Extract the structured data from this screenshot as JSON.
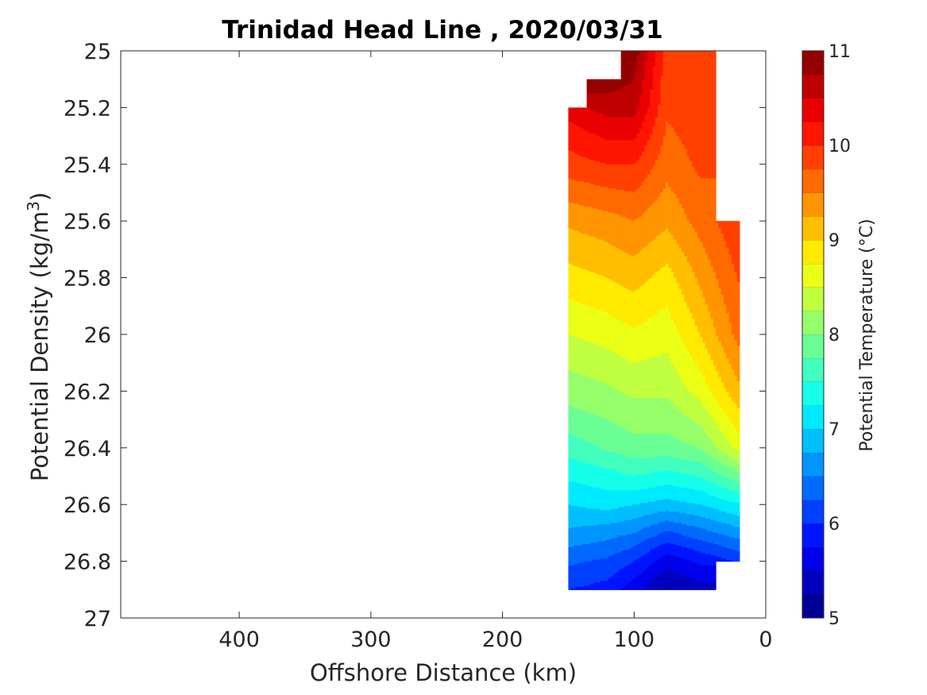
{
  "chart_data": {
    "type": "heatmap",
    "title": "Trinidad Head Line , 2020/03/31",
    "xlabel": "Offshore Distance (km)",
    "ylabel": "Potential Density (kg/m",
    "ylabel_sup": "3",
    "ylabel_close": ")",
    "colorbar_label": "Potential Temperature (°C)",
    "xlim": [
      490,
      0
    ],
    "ylim": [
      25,
      27
    ],
    "x_reversed": true,
    "y_reversed": true,
    "xticks": [
      400,
      300,
      200,
      100,
      0
    ],
    "yticks": [
      "25",
      "25.2",
      "25.4",
      "25.6",
      "25.8",
      "26",
      "26.2",
      "26.4",
      "26.6",
      "26.8",
      "27"
    ],
    "colorbar_ticks": [
      "11",
      "10",
      "9",
      "8",
      "7",
      "6",
      "5"
    ],
    "colorbar_range": [
      5,
      11
    ],
    "colorbar_levels": 24,
    "grid": false,
    "data_extent_km": [
      20,
      150
    ],
    "density_extent": [
      25,
      26.9
    ],
    "columns": [
      {
        "x": 150,
        "sigma": [
          25.2,
          25.3,
          25.4,
          25.5,
          25.6,
          25.7,
          25.8,
          25.9,
          26.0,
          26.1,
          26.2,
          26.3,
          26.4,
          26.5,
          26.6,
          26.7,
          26.8,
          26.9
        ],
        "temp": [
          10.4,
          10.1,
          9.9,
          9.6,
          9.3,
          9.1,
          8.9,
          8.7,
          8.5,
          8.3,
          8.1,
          7.9,
          7.6,
          7.3,
          7.0,
          6.7,
          6.3,
          6.0
        ]
      },
      {
        "x": 120,
        "sigma": [
          25.1,
          25.2,
          25.3,
          25.4,
          25.5,
          25.6,
          25.7,
          25.8,
          25.9,
          26.0,
          26.1,
          26.2,
          26.3,
          26.4,
          26.5,
          26.6,
          26.7,
          26.8,
          26.9
        ],
        "temp": [
          10.9,
          10.6,
          10.3,
          10.0,
          9.7,
          9.4,
          9.2,
          9.0,
          8.8,
          8.6,
          8.4,
          8.2,
          8.0,
          7.8,
          7.4,
          7.1,
          6.6,
          6.2,
          5.9
        ]
      },
      {
        "x": 100,
        "sigma": [
          25.0,
          25.2,
          25.4,
          25.6,
          25.8,
          26.0,
          26.2,
          26.4,
          26.5,
          26.6,
          26.7,
          26.8,
          26.9
        ],
        "temp": [
          10.9,
          10.6,
          10.0,
          9.5,
          9.1,
          8.7,
          8.3,
          7.9,
          7.5,
          7.0,
          6.5,
          6.0,
          5.6
        ]
      },
      {
        "x": 75,
        "sigma": [
          25.0,
          25.2,
          25.4,
          25.6,
          25.8,
          26.0,
          26.2,
          26.4,
          26.5,
          26.6,
          26.7,
          26.8,
          26.9
        ],
        "temp": [
          9.9,
          9.8,
          9.6,
          9.3,
          8.9,
          8.6,
          8.3,
          7.9,
          7.4,
          6.9,
          6.2,
          5.6,
          5.2
        ]
      },
      {
        "x": 50,
        "sigma": [
          25.0,
          25.2,
          25.4,
          25.6,
          25.8,
          26.0,
          26.2,
          26.4,
          26.6,
          26.8,
          26.9
        ],
        "temp": [
          9.9,
          9.9,
          9.8,
          9.6,
          9.3,
          9.0,
          8.6,
          8.0,
          7.0,
          5.8,
          5.4
        ]
      },
      {
        "x": 25,
        "sigma": [
          25.6,
          25.8,
          26.0,
          26.2,
          26.4,
          26.6,
          26.8
        ],
        "temp": [
          9.9,
          9.7,
          9.5,
          9.1,
          8.5,
          7.2,
          6.0
        ]
      }
    ]
  }
}
